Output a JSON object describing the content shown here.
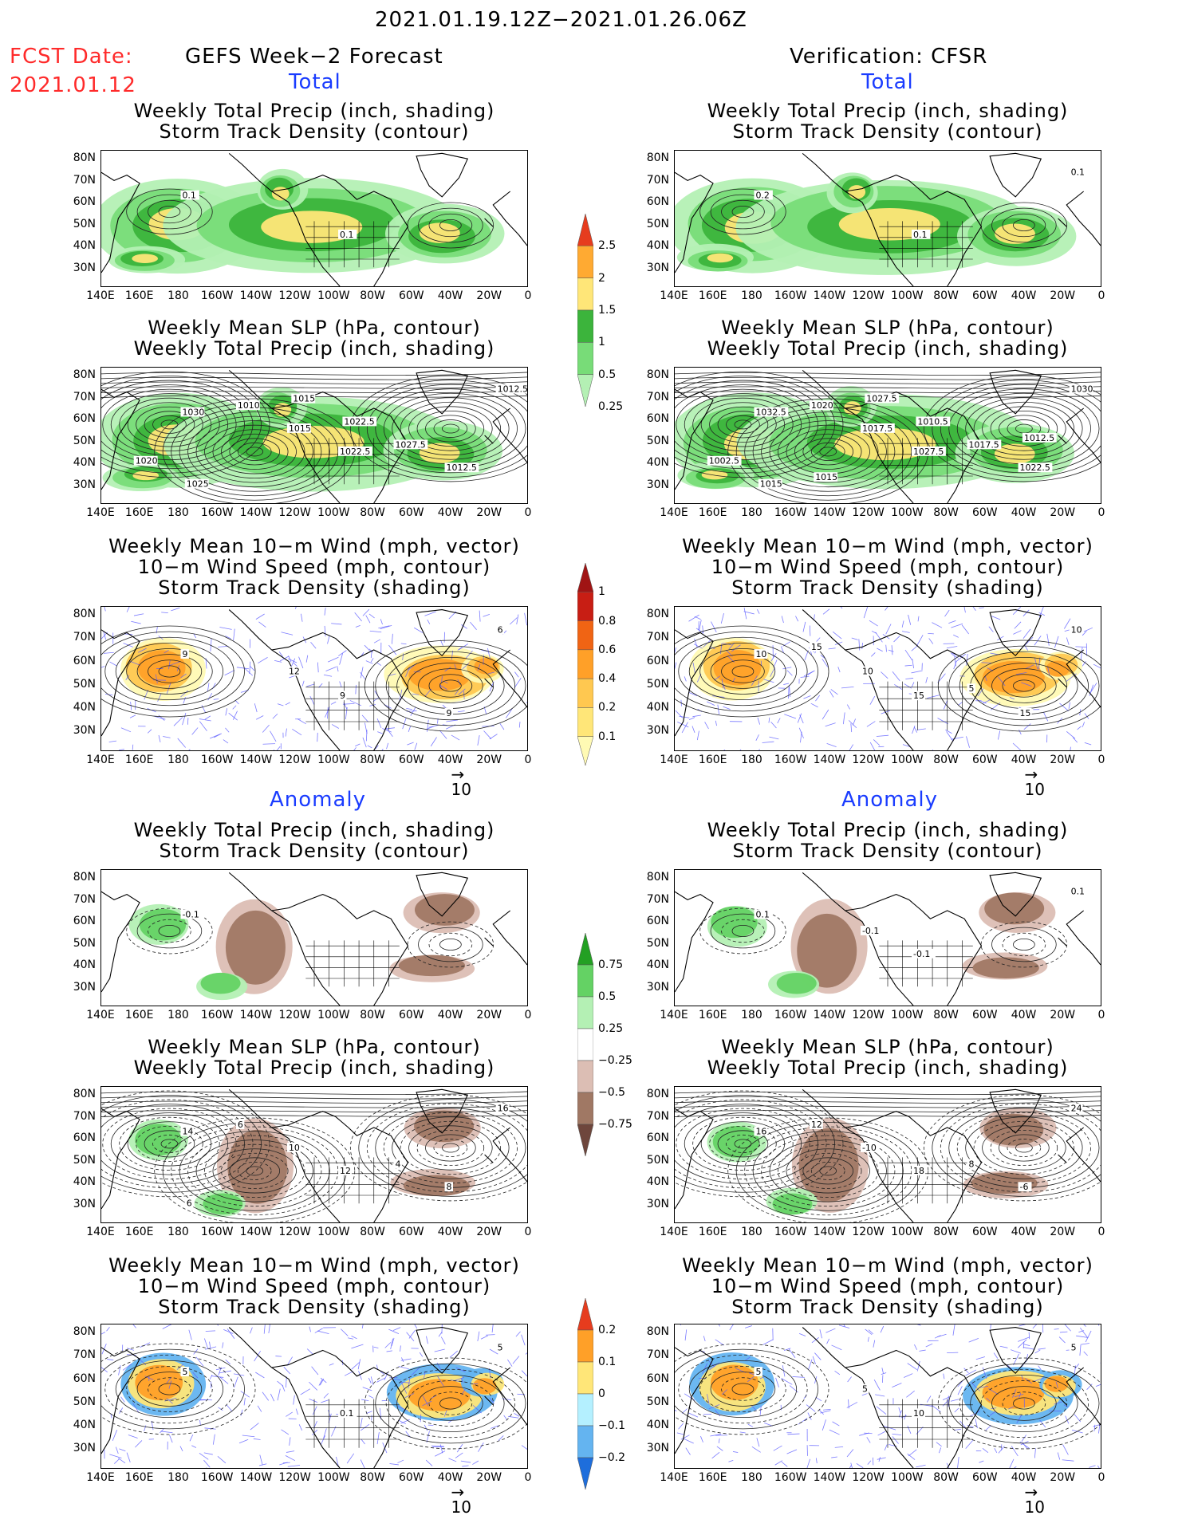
{
  "header": {
    "period": "2021.01.19.12Z−2021.01.26.06Z",
    "fcst_label": "FCST Date:",
    "fcst_date": "2021.01.12",
    "left_title": "GEFS Week−2 Forecast",
    "right_title": "Verification: CFSR",
    "total_label": "Total",
    "anomaly_label": "Anomaly"
  },
  "panel_titles": {
    "precip_track": [
      "Weekly Total Precip (inch, shading)",
      "Storm Track Density (contour)"
    ],
    "slp_precip": [
      "Weekly Mean SLP (hPa, contour)",
      "Weekly Total Precip (inch, shading)"
    ],
    "wind_track": [
      "Weekly Mean 10−m Wind (mph, vector)",
      "10−m Wind Speed (mph, contour)",
      "Storm Track Density (shading)"
    ]
  },
  "axes": {
    "lat_labels": [
      "80N",
      "70N",
      "60N",
      "50N",
      "40N",
      "30N"
    ],
    "lon_labels": [
      "140E",
      "160E",
      "180",
      "160W",
      "140W",
      "120W",
      "100W",
      "80W",
      "60W",
      "40W",
      "20W",
      "0"
    ]
  },
  "vector_scale": "10",
  "colorbars": {
    "precip_total": {
      "labels": [
        "0.25",
        "0.5",
        "1",
        "1.5",
        "2",
        "2.5"
      ],
      "colors": [
        "#b4f0b4",
        "#78dc78",
        "#3cb43c",
        "#ffe678",
        "#ffaa32",
        "#e63c1e"
      ]
    },
    "track_total": {
      "labels": [
        "0.1",
        "0.2",
        "0.4",
        "0.6",
        "0.8",
        "1"
      ],
      "colors": [
        "#fffab4",
        "#ffe678",
        "#ffc850",
        "#ffa028",
        "#f06414",
        "#c81e14",
        "#a01414"
      ]
    },
    "precip_anom": {
      "labels": [
        "−0.75",
        "−0.5",
        "−0.25",
        "0.25",
        "0.5",
        "0.75"
      ],
      "colors": [
        "#6e463c",
        "#a07864",
        "#dcbeb4",
        "#ffffff",
        "#b4f0b4",
        "#64d264",
        "#23a023"
      ]
    },
    "track_anom": {
      "labels": [
        "−0.2",
        "−0.1",
        "0",
        "0.1",
        "0.2"
      ],
      "colors": [
        "#1e6edc",
        "#64b4f0",
        "#b4f0ff",
        "#ffe678",
        "#ffa028",
        "#e63c1e"
      ]
    }
  },
  "map_annotations": {
    "f_total_precip": [
      "0.1",
      "0.1"
    ],
    "v_total_precip": [
      "0.2",
      "0.1",
      "0.1"
    ],
    "f_total_slp": [
      "1030",
      "1022.5",
      "1012.5",
      "1015",
      "1012.5",
      "1010",
      "1027.5",
      "1025",
      "1022.5",
      "1020",
      "1015"
    ],
    "v_total_slp": [
      "1032.5",
      "1027.5",
      "1030",
      "1017.5",
      "1022.5",
      "1020",
      "1017.5",
      "1015",
      "1010.5",
      "1002.5",
      "1027.5",
      "1012.5",
      "1015"
    ],
    "f_total_wind": [
      "9",
      "9",
      "6",
      "12",
      "9"
    ],
    "v_total_wind": [
      "10",
      "15",
      "10",
      "10",
      "15",
      "15",
      "5"
    ],
    "f_anom_precip": [
      "-0.1"
    ],
    "v_anom_precip": [
      "0.1",
      "-0.1",
      "0.1",
      "-0.1"
    ],
    "f_anom_slp": [
      "14",
      "12",
      "16",
      "10",
      "8",
      "6",
      "4",
      "6"
    ],
    "v_anom_slp": [
      "16",
      "18",
      "24",
      "-10",
      "-6",
      "12",
      "8"
    ],
    "f_anom_wind": [
      "5",
      "0.1",
      "5"
    ],
    "v_anom_wind": [
      "5",
      "10",
      "5",
      "5"
    ]
  }
}
